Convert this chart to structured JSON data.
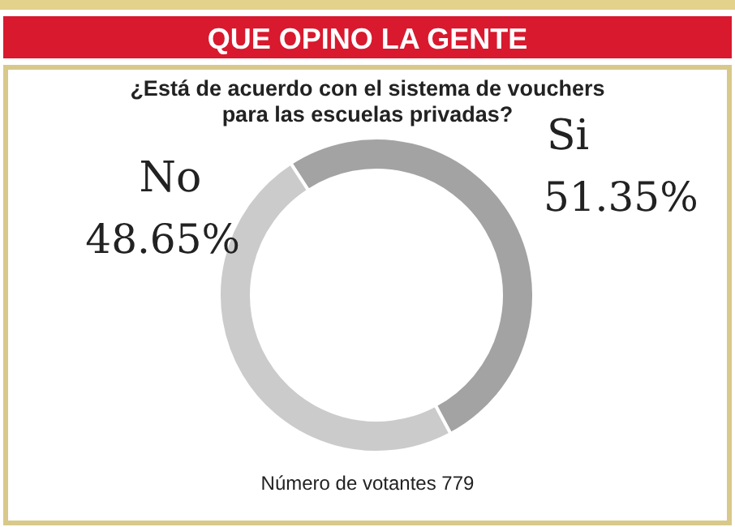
{
  "chart_data": {
    "type": "donut",
    "title": "QUE OPINO LA GENTE",
    "subtitle": "¿Está de acuerdo con el sistema de vouchers\npara las escuelas privadas?",
    "categories": [
      "Si",
      "No"
    ],
    "values": [
      51.35,
      48.65
    ],
    "colors": [
      "#a3a3a3",
      "#cbcbcb"
    ],
    "value_labels": [
      "51.35%",
      "48.65%"
    ],
    "annotations": [
      "Número de votantes 779"
    ]
  }
}
